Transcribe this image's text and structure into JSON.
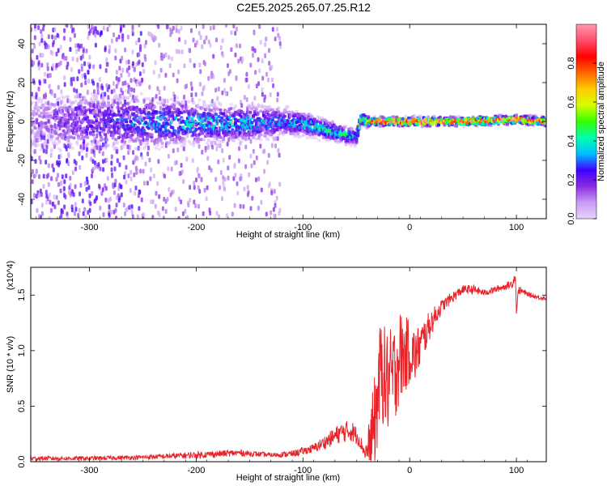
{
  "title": "C2E5.2025.265.07.25.R12",
  "colormap_stops": [
    "#ffffff",
    "#e6d2ff",
    "#c89bf5",
    "#8a2be2",
    "#3f00ff",
    "#00bfff",
    "#00ffb0",
    "#33ff00",
    "#d4ff00",
    "#ffcc00",
    "#ff6600",
    "#ff0000",
    "#ff4d6d",
    "#ff99aa"
  ],
  "chart_data": [
    {
      "type": "heatmap",
      "name": "spectrogram",
      "title": "C2E5.2025.265.07.25.R12",
      "xlabel": "Height of straight line (km)",
      "ylabel": "Frequency (Hz)",
      "xlim": [
        -355,
        128
      ],
      "ylim": [
        -50,
        50
      ],
      "xticks": [
        -300,
        -200,
        -100,
        0,
        100
      ],
      "yticks": [
        -40,
        -20,
        0,
        20,
        40
      ],
      "tick_labels_x": [
        "-300",
        "-200",
        "-100",
        "0",
        "100"
      ],
      "tick_labels_y": [
        "-40",
        "-20",
        "0",
        "20",
        "40"
      ],
      "colorbar": {
        "label": "Normalized spectral amplitude",
        "range": [
          0,
          1
        ],
        "ticks": [
          0.0,
          0.2,
          0.4,
          0.6,
          0.8
        ],
        "tick_labels": [
          "0.0",
          "0.2",
          "0.4",
          "0.6",
          "0.8"
        ]
      },
      "ridge": {
        "x": [
          -355,
          -250,
          -200,
          -150,
          -120,
          -100,
          -80,
          -60,
          -50,
          -45,
          -40,
          -35,
          -20,
          0,
          50,
          100,
          128
        ],
        "freq": [
          0,
          0,
          -1,
          -1,
          0,
          -1,
          -4,
          -7,
          -8,
          2,
          0,
          0,
          0,
          0,
          0,
          1,
          0
        ],
        "amplitude": [
          0.1,
          0.3,
          0.35,
          0.35,
          0.3,
          0.35,
          0.4,
          0.4,
          0.35,
          0.5,
          0.6,
          0.75,
          0.9,
          0.95,
          0.9,
          0.9,
          0.85
        ],
        "width_hz": [
          22,
          18,
          14,
          12,
          10,
          8,
          7,
          6,
          6,
          5,
          4,
          3,
          3,
          3,
          3,
          3,
          3
        ]
      },
      "scatter_until_x": -120,
      "scatter_freq_range": [
        -50,
        50
      ]
    },
    {
      "type": "line",
      "name": "snr",
      "xlabel": "Height of straight line (km)",
      "ylabel": "SNR (10 * v/v)",
      "y_multiplier_label": "(x10^4)",
      "xlim": [
        -355,
        128
      ],
      "ylim": [
        0,
        1.75
      ],
      "xticks": [
        -300,
        -200,
        -100,
        0,
        100
      ],
      "yticks": [
        0.0,
        0.5,
        1.0,
        1.5
      ],
      "tick_labels_x": [
        "-300",
        "-200",
        "-100",
        "0",
        "100"
      ],
      "tick_labels_y": [
        "0.0",
        "0.5",
        "1.0",
        "1.5"
      ],
      "color": "#e8242b",
      "series": [
        {
          "name": "SNR",
          "x": [
            -355,
            -300,
            -250,
            -200,
            -160,
            -130,
            -110,
            -90,
            -75,
            -65,
            -55,
            -48,
            -42,
            -38,
            -32,
            -27,
            -22,
            -16,
            -10,
            -5,
            0,
            5,
            10,
            20,
            30,
            40,
            50,
            60,
            70,
            80,
            90,
            96,
            99,
            100,
            102,
            110,
            120,
            128
          ],
          "y": [
            0.03,
            0.03,
            0.04,
            0.06,
            0.08,
            0.06,
            0.07,
            0.12,
            0.2,
            0.26,
            0.28,
            0.22,
            0.08,
            0.12,
            0.4,
            0.85,
            0.7,
            0.75,
            0.95,
            0.95,
            1.0,
            0.95,
            1.05,
            1.25,
            1.4,
            1.48,
            1.55,
            1.55,
            1.52,
            1.55,
            1.58,
            1.6,
            1.68,
            1.35,
            1.55,
            1.51,
            1.48,
            1.47
          ],
          "noise": [
            0.02,
            0.02,
            0.02,
            0.03,
            0.03,
            0.02,
            0.03,
            0.04,
            0.07,
            0.09,
            0.1,
            0.08,
            0.05,
            0.25,
            0.45,
            0.45,
            0.5,
            0.45,
            0.45,
            0.35,
            0.3,
            0.25,
            0.2,
            0.12,
            0.06,
            0.05,
            0.04,
            0.04,
            0.03,
            0.03,
            0.03,
            0.04,
            0.05,
            0.02,
            0.04,
            0.02,
            0.02,
            0.02
          ]
        }
      ]
    }
  ]
}
